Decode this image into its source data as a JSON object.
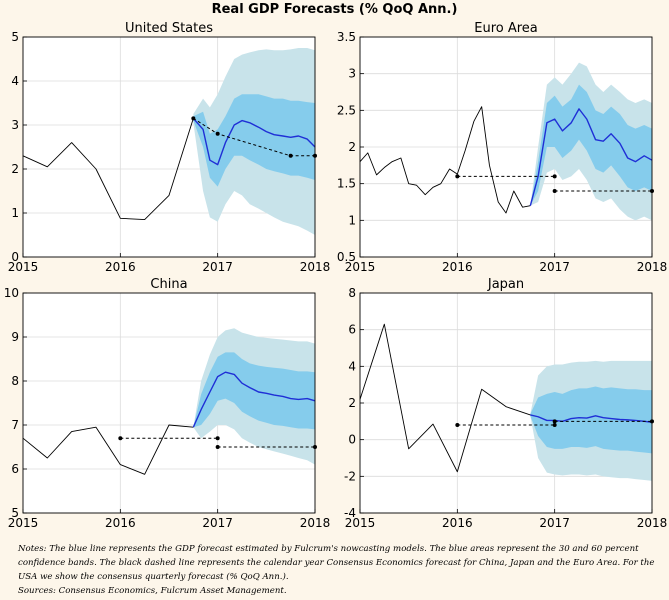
{
  "title": "Real GDP Forecasts (% QoQ Ann.)",
  "notes": [
    "Notes: The blue line represents the GDP forecast estimated by Fulcrum's nowcasting models. The blue areas represent the 30 and 60 percent confidence bands. The black dashed line represents the calendar year Consensus Economics forecast for China, Japan and the Euro Area. For the USA we show the consensus quarterly forecast (% QoQ Ann.).",
    "Sources: Consensus Economics, Fulcrum Asset Management."
  ],
  "colors": {
    "background": "#fdf6ea",
    "outer_band": "#c8e3ea",
    "inner_band": "#85ccec",
    "forecast": "#1f2fd6",
    "history": "#000000"
  },
  "chart_data": [
    {
      "type": "line",
      "title": "United States",
      "xlim": [
        2015,
        2018
      ],
      "ylim": [
        0,
        5
      ],
      "xticks": [
        2015,
        2016,
        2017,
        2018
      ],
      "yticks": [
        0,
        1,
        2,
        3,
        4,
        5
      ],
      "history": {
        "x": [
          2015.0,
          2015.25,
          2015.5,
          2015.75,
          2016.0,
          2016.25,
          2016.5,
          2016.75
        ],
        "y": [
          2.3,
          2.05,
          2.6,
          2.0,
          0.88,
          0.85,
          1.4,
          3.15
        ]
      },
      "forecast": {
        "x": [
          2016.75,
          2016.85,
          2016.92,
          2017.0,
          2017.08,
          2017.17,
          2017.25,
          2017.33,
          2017.42,
          2017.5,
          2017.58,
          2017.67,
          2017.75,
          2017.83,
          2017.92,
          2018.0
        ],
        "y": [
          3.15,
          2.9,
          2.2,
          2.1,
          2.6,
          3.0,
          3.1,
          3.05,
          2.95,
          2.85,
          2.78,
          2.75,
          2.72,
          2.75,
          2.68,
          2.5
        ]
      },
      "band30": {
        "x": [
          2016.75,
          2016.85,
          2016.92,
          2017.0,
          2017.08,
          2017.17,
          2017.25,
          2017.33,
          2017.42,
          2017.5,
          2017.58,
          2017.67,
          2017.75,
          2017.83,
          2017.92,
          2018.0
        ],
        "low": [
          3.1,
          2.5,
          1.8,
          1.6,
          2.0,
          2.3,
          2.3,
          2.2,
          2.1,
          2.0,
          1.95,
          1.9,
          1.85,
          1.85,
          1.8,
          1.75
        ],
        "high": [
          3.2,
          3.3,
          2.8,
          2.9,
          3.2,
          3.6,
          3.7,
          3.7,
          3.7,
          3.65,
          3.6,
          3.6,
          3.55,
          3.55,
          3.52,
          3.5
        ]
      },
      "band60": {
        "x": [
          2016.75,
          2016.85,
          2016.92,
          2017.0,
          2017.08,
          2017.17,
          2017.25,
          2017.33,
          2017.42,
          2017.5,
          2017.58,
          2017.67,
          2017.75,
          2017.83,
          2017.92,
          2018.0
        ],
        "low": [
          3.05,
          1.5,
          0.9,
          0.8,
          1.2,
          1.5,
          1.4,
          1.2,
          1.1,
          1.0,
          0.9,
          0.8,
          0.75,
          0.7,
          0.6,
          0.5
        ],
        "high": [
          3.25,
          3.6,
          3.4,
          3.7,
          4.1,
          4.5,
          4.6,
          4.65,
          4.7,
          4.72,
          4.7,
          4.7,
          4.72,
          4.75,
          4.75,
          4.7
        ]
      },
      "consensus": [
        {
          "x": [
            2016.75,
            2017.0,
            2017.75,
            2018.0
          ],
          "y": [
            3.15,
            2.8,
            2.3,
            2.3
          ],
          "markers": [
            2016.75,
            2017.0,
            2017.75,
            2018.0
          ]
        }
      ]
    },
    {
      "type": "line",
      "title": "Euro Area",
      "xlim": [
        2015,
        2018
      ],
      "ylim": [
        0.5,
        3.5
      ],
      "xticks": [
        2015,
        2016,
        2017,
        2018
      ],
      "yticks": [
        0.5,
        1,
        1.5,
        2,
        2.5,
        3,
        3.5
      ],
      "history": {
        "x": [
          2015.0,
          2015.08,
          2015.17,
          2015.25,
          2015.33,
          2015.42,
          2015.5,
          2015.58,
          2015.67,
          2015.75,
          2015.83,
          2015.92,
          2016.0,
          2016.08,
          2016.17,
          2016.25,
          2016.33,
          2016.42,
          2016.5,
          2016.58,
          2016.67,
          2016.75
        ],
        "y": [
          1.8,
          1.92,
          1.62,
          1.72,
          1.8,
          1.85,
          1.5,
          1.48,
          1.35,
          1.45,
          1.5,
          1.7,
          1.63,
          1.95,
          2.35,
          2.55,
          1.75,
          1.25,
          1.1,
          1.4,
          1.18,
          1.2
        ]
      },
      "forecast": {
        "x": [
          2016.75,
          2016.83,
          2016.92,
          2017.0,
          2017.08,
          2017.17,
          2017.25,
          2017.33,
          2017.42,
          2017.5,
          2017.58,
          2017.67,
          2017.75,
          2017.83,
          2017.92,
          2018.0
        ],
        "y": [
          1.2,
          1.6,
          2.33,
          2.38,
          2.22,
          2.33,
          2.52,
          2.38,
          2.1,
          2.08,
          2.18,
          2.05,
          1.85,
          1.8,
          1.88,
          1.82
        ]
      },
      "band30": {
        "x": [
          2016.75,
          2016.83,
          2016.92,
          2017.0,
          2017.08,
          2017.17,
          2017.25,
          2017.33,
          2017.42,
          2017.5,
          2017.58,
          2017.67,
          2017.75,
          2017.83,
          2017.92,
          2018.0
        ],
        "low": [
          1.2,
          1.4,
          2.0,
          2.0,
          1.85,
          1.95,
          2.1,
          1.95,
          1.7,
          1.65,
          1.75,
          1.6,
          1.45,
          1.4,
          1.45,
          1.4
        ],
        "high": [
          1.2,
          1.8,
          2.6,
          2.7,
          2.55,
          2.65,
          2.85,
          2.75,
          2.5,
          2.45,
          2.55,
          2.45,
          2.3,
          2.25,
          2.3,
          2.25
        ]
      },
      "band60": {
        "x": [
          2016.75,
          2016.83,
          2016.92,
          2017.0,
          2017.08,
          2017.17,
          2017.25,
          2017.33,
          2017.42,
          2017.5,
          2017.58,
          2017.67,
          2017.75,
          2017.83,
          2017.92,
          2018.0
        ],
        "low": [
          1.2,
          1.25,
          1.65,
          1.7,
          1.55,
          1.6,
          1.7,
          1.55,
          1.3,
          1.25,
          1.3,
          1.15,
          1.05,
          1.0,
          1.05,
          1.0
        ],
        "high": [
          1.2,
          2.0,
          2.85,
          2.95,
          2.85,
          3.0,
          3.15,
          3.1,
          2.85,
          2.75,
          2.85,
          2.75,
          2.65,
          2.6,
          2.65,
          2.6
        ]
      },
      "consensus": [
        {
          "x": [
            2016.0,
            2017.0
          ],
          "y": [
            1.6,
            1.6
          ],
          "markers": [
            2016.0,
            2017.0
          ]
        },
        {
          "x": [
            2017.0,
            2018.0
          ],
          "y": [
            1.4,
            1.4
          ],
          "markers": [
            2017.0,
            2018.0
          ]
        }
      ]
    },
    {
      "type": "line",
      "title": "China",
      "xlim": [
        2015,
        2018
      ],
      "ylim": [
        5,
        10
      ],
      "xticks": [
        2015,
        2016,
        2017,
        2018
      ],
      "yticks": [
        5,
        6,
        7,
        8,
        9,
        10
      ],
      "history": {
        "x": [
          2015.0,
          2015.25,
          2015.5,
          2015.75,
          2016.0,
          2016.25,
          2016.5,
          2016.75
        ],
        "y": [
          6.7,
          6.25,
          6.85,
          6.95,
          6.1,
          5.88,
          7.0,
          6.95
        ]
      },
      "forecast": {
        "x": [
          2016.75,
          2016.83,
          2016.92,
          2017.0,
          2017.08,
          2017.17,
          2017.25,
          2017.33,
          2017.42,
          2017.5,
          2017.58,
          2017.67,
          2017.75,
          2017.83,
          2017.92,
          2018.0
        ],
        "y": [
          6.95,
          7.35,
          7.75,
          8.1,
          8.2,
          8.15,
          7.95,
          7.85,
          7.75,
          7.72,
          7.68,
          7.65,
          7.6,
          7.58,
          7.6,
          7.55
        ]
      },
      "band30": {
        "x": [
          2016.75,
          2016.83,
          2016.92,
          2017.0,
          2017.08,
          2017.17,
          2017.25,
          2017.33,
          2017.42,
          2017.5,
          2017.58,
          2017.67,
          2017.75,
          2017.83,
          2017.92,
          2018.0
        ],
        "low": [
          6.95,
          7.0,
          7.25,
          7.55,
          7.6,
          7.5,
          7.3,
          7.2,
          7.1,
          7.05,
          7.0,
          6.98,
          6.95,
          6.92,
          6.92,
          6.9
        ],
        "high": [
          6.95,
          7.7,
          8.2,
          8.55,
          8.65,
          8.65,
          8.5,
          8.4,
          8.35,
          8.32,
          8.3,
          8.28,
          8.25,
          8.22,
          8.22,
          8.2
        ]
      },
      "band60": {
        "x": [
          2016.75,
          2016.83,
          2016.92,
          2017.0,
          2017.08,
          2017.17,
          2017.25,
          2017.33,
          2017.42,
          2017.5,
          2017.58,
          2017.67,
          2017.75,
          2017.83,
          2017.92,
          2018.0
        ],
        "low": [
          6.95,
          6.7,
          6.85,
          7.0,
          7.0,
          6.9,
          6.7,
          6.6,
          6.5,
          6.45,
          6.4,
          6.35,
          6.3,
          6.25,
          6.2,
          6.1
        ],
        "high": [
          6.95,
          8.0,
          8.6,
          9.0,
          9.15,
          9.2,
          9.1,
          9.05,
          9.0,
          8.98,
          8.96,
          8.94,
          8.92,
          8.9,
          8.9,
          8.85
        ]
      },
      "consensus": [
        {
          "x": [
            2016.0,
            2017.0
          ],
          "y": [
            6.7,
            6.7
          ],
          "markers": [
            2016.0,
            2017.0
          ]
        },
        {
          "x": [
            2017.0,
            2018.0
          ],
          "y": [
            6.5,
            6.5
          ],
          "markers": [
            2017.0,
            2018.0
          ]
        }
      ]
    },
    {
      "type": "line",
      "title": "Japan",
      "xlim": [
        2015,
        2018
      ],
      "ylim": [
        -4,
        8
      ],
      "xticks": [
        2015,
        2016,
        2017,
        2018
      ],
      "yticks": [
        -4,
        -2,
        0,
        2,
        4,
        6,
        8
      ],
      "history": {
        "x": [
          2015.0,
          2015.25,
          2015.5,
          2015.75,
          2016.0,
          2016.25,
          2016.5,
          2016.75
        ],
        "y": [
          2.2,
          6.3,
          -0.5,
          0.85,
          -1.75,
          2.75,
          1.8,
          1.35
        ]
      },
      "forecast": {
        "x": [
          2016.75,
          2016.83,
          2016.92,
          2017.0,
          2017.08,
          2017.17,
          2017.25,
          2017.33,
          2017.42,
          2017.5,
          2017.58,
          2017.67,
          2017.75,
          2017.83,
          2017.92,
          2018.0
        ],
        "y": [
          1.35,
          1.25,
          1.05,
          1.05,
          1.0,
          1.15,
          1.2,
          1.18,
          1.3,
          1.2,
          1.15,
          1.1,
          1.08,
          1.05,
          1.0,
          0.95
        ]
      },
      "band30": {
        "x": [
          2016.75,
          2016.83,
          2016.92,
          2017.0,
          2017.08,
          2017.17,
          2017.25,
          2017.33,
          2017.42,
          2017.5,
          2017.58,
          2017.67,
          2017.75,
          2017.83,
          2017.92,
          2018.0
        ],
        "low": [
          1.3,
          0.2,
          -0.4,
          -0.5,
          -0.5,
          -0.4,
          -0.4,
          -0.45,
          -0.35,
          -0.5,
          -0.55,
          -0.6,
          -0.6,
          -0.65,
          -0.7,
          -0.75
        ],
        "high": [
          1.4,
          2.3,
          2.5,
          2.6,
          2.5,
          2.7,
          2.8,
          2.8,
          2.9,
          2.8,
          2.85,
          2.8,
          2.75,
          2.75,
          2.7,
          2.7
        ]
      },
      "band60": {
        "x": [
          2016.75,
          2016.83,
          2016.92,
          2017.0,
          2017.08,
          2017.17,
          2017.25,
          2017.33,
          2017.42,
          2017.5,
          2017.58,
          2017.67,
          2017.75,
          2017.83,
          2017.92,
          2018.0
        ],
        "low": [
          1.3,
          -1.0,
          -1.8,
          -1.9,
          -1.95,
          -1.9,
          -1.9,
          -1.95,
          -1.9,
          -2.0,
          -2.05,
          -2.1,
          -2.1,
          -2.15,
          -2.2,
          -2.25
        ],
        "high": [
          1.4,
          3.5,
          4.0,
          4.1,
          4.1,
          4.2,
          4.25,
          4.25,
          4.3,
          4.25,
          4.3,
          4.3,
          4.3,
          4.3,
          4.3,
          4.3
        ]
      },
      "consensus": [
        {
          "x": [
            2016.0,
            2017.0
          ],
          "y": [
            0.8,
            0.8
          ],
          "markers": [
            2016.0,
            2017.0
          ]
        },
        {
          "x": [
            2017.0,
            2018.0
          ],
          "y": [
            1.0,
            1.0
          ],
          "markers": [
            2017.0,
            2018.0
          ]
        }
      ]
    }
  ]
}
